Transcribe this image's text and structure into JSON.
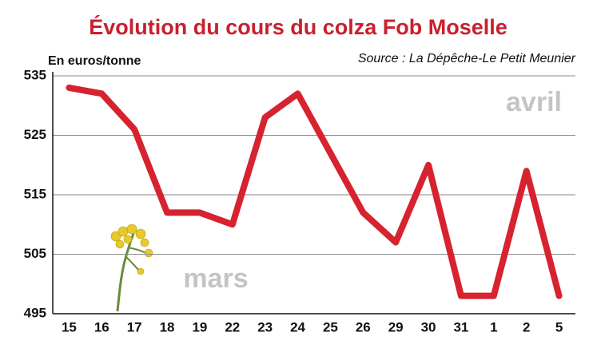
{
  "chart_data": {
    "type": "line",
    "title": "Évolution du cours du colza Fob Moselle",
    "y_label": "En euros/tonne",
    "source": "Source : La Dépêche-Le Petit Meunier",
    "annotations": [
      "avril",
      "mars"
    ],
    "categories": [
      "15",
      "16",
      "17",
      "18",
      "19",
      "22",
      "23",
      "24",
      "25",
      "26",
      "29",
      "30",
      "31",
      "1",
      "2",
      "5"
    ],
    "values": [
      533,
      532,
      526,
      512,
      512,
      510,
      528,
      532,
      522,
      512,
      507,
      520,
      498,
      498,
      519,
      498
    ],
    "color": "#d6232f",
    "ylim": [
      495,
      535
    ],
    "yticks": [
      495,
      505,
      515,
      525,
      535
    ],
    "grid": true
  }
}
